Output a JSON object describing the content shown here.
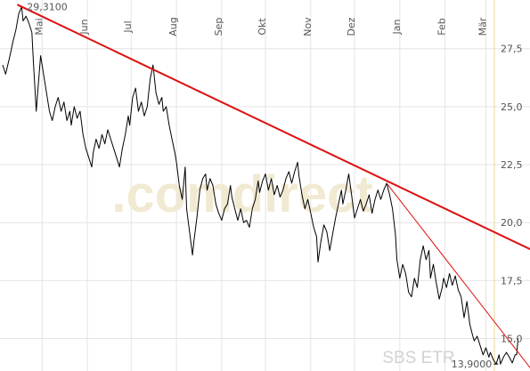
{
  "chart_data": {
    "type": "line",
    "title": "",
    "xlabel": "",
    "ylabel": "",
    "instrument": "SBS ETR",
    "watermark": ".comdirect",
    "ylim": [
      13.6,
      29.6
    ],
    "y_ticks": [
      "15,0",
      "17,5",
      "20,0",
      "22,5",
      "25,0",
      "27,5"
    ],
    "y_tick_values": [
      15.0,
      17.5,
      20.0,
      22.5,
      25.0,
      27.5
    ],
    "x_ticks": [
      "Mai",
      "Jun",
      "Jul",
      "Aug",
      "Sep",
      "Okt",
      "Nov",
      "Dez",
      "Jan",
      "Feb",
      "Mär"
    ],
    "x_tick_days": [
      27,
      58,
      88,
      119,
      150,
      180,
      211,
      241,
      272,
      303,
      331
    ],
    "x_range_days": [
      0,
      363
    ],
    "grid": true,
    "annotations": {
      "high_label": "29,3100",
      "high_value": 29.31,
      "high_day": 13,
      "low_label": "13,9000",
      "low_value": 13.9,
      "low_day": 340
    },
    "trendlines": [
      {
        "name": "",
        "points": [
          [
            10,
            29.4
          ],
          [
            363,
            18.8
          ]
        ],
        "color": "#dd1111",
        "width": 2
      },
      {
        "name": "",
        "points": [
          [
            263,
            21.7
          ],
          [
            363,
            13.6
          ]
        ],
        "color": "#dd1111",
        "width": 1
      }
    ],
    "series": [
      {
        "name": "",
        "color": "#000000",
        "points": [
          [
            0,
            26.8
          ],
          [
            2,
            26.4
          ],
          [
            5,
            27.2
          ],
          [
            7,
            27.8
          ],
          [
            9,
            28.3
          ],
          [
            11,
            29.0
          ],
          [
            13,
            29.31
          ],
          [
            14,
            28.7
          ],
          [
            16,
            28.9
          ],
          [
            18,
            28.6
          ],
          [
            20,
            28.2
          ],
          [
            21,
            27.0
          ],
          [
            23,
            24.8
          ],
          [
            24,
            25.6
          ],
          [
            26,
            27.2
          ],
          [
            28,
            26.4
          ],
          [
            30,
            25.6
          ],
          [
            32,
            24.8
          ],
          [
            34,
            24.4
          ],
          [
            36,
            25.0
          ],
          [
            38,
            25.4
          ],
          [
            40,
            24.8
          ],
          [
            42,
            25.2
          ],
          [
            44,
            24.4
          ],
          [
            46,
            24.8
          ],
          [
            47,
            24.2
          ],
          [
            49,
            25.0
          ],
          [
            51,
            24.5
          ],
          [
            53,
            24.8
          ],
          [
            55,
            23.8
          ],
          [
            57,
            23.2
          ],
          [
            59,
            22.8
          ],
          [
            61,
            22.4
          ],
          [
            62,
            23.0
          ],
          [
            64,
            23.6
          ],
          [
            66,
            23.2
          ],
          [
            68,
            23.8
          ],
          [
            70,
            23.4
          ],
          [
            72,
            24.0
          ],
          [
            74,
            23.6
          ],
          [
            76,
            23.2
          ],
          [
            78,
            22.8
          ],
          [
            80,
            22.4
          ],
          [
            82,
            23.2
          ],
          [
            84,
            23.8
          ],
          [
            86,
            24.6
          ],
          [
            87,
            24.2
          ],
          [
            89,
            25.4
          ],
          [
            91,
            25.8
          ],
          [
            93,
            24.8
          ],
          [
            95,
            25.2
          ],
          [
            97,
            24.6
          ],
          [
            99,
            25.0
          ],
          [
            101,
            26.2
          ],
          [
            103,
            26.8
          ],
          [
            105,
            25.6
          ],
          [
            107,
            25.1
          ],
          [
            109,
            25.4
          ],
          [
            110,
            24.8
          ],
          [
            112,
            25.0
          ],
          [
            114,
            24.2
          ],
          [
            116,
            23.6
          ],
          [
            118,
            23.0
          ],
          [
            119,
            22.6
          ],
          [
            121,
            21.6
          ],
          [
            123,
            21.0
          ],
          [
            125,
            22.4
          ],
          [
            126,
            20.6
          ],
          [
            128,
            19.6
          ],
          [
            130,
            18.6
          ],
          [
            131,
            19.2
          ],
          [
            133,
            20.2
          ],
          [
            135,
            21.4
          ],
          [
            137,
            21.9
          ],
          [
            139,
            22.1
          ],
          [
            140,
            21.4
          ],
          [
            142,
            21.9
          ],
          [
            144,
            21.6
          ],
          [
            146,
            20.8
          ],
          [
            148,
            20.4
          ],
          [
            150,
            20.1
          ],
          [
            152,
            20.6
          ],
          [
            154,
            20.8
          ],
          [
            156,
            21.6
          ],
          [
            157,
            21.1
          ],
          [
            159,
            20.6
          ],
          [
            161,
            20.1
          ],
          [
            163,
            20.6
          ],
          [
            165,
            20.0
          ],
          [
            167,
            20.1
          ],
          [
            169,
            19.8
          ],
          [
            171,
            20.6
          ],
          [
            173,
            21.0
          ],
          [
            175,
            21.8
          ],
          [
            176,
            21.3
          ],
          [
            178,
            21.8
          ],
          [
            180,
            22.1
          ],
          [
            182,
            21.4
          ],
          [
            184,
            21.9
          ],
          [
            186,
            21.2
          ],
          [
            188,
            21.6
          ],
          [
            190,
            21.1
          ],
          [
            192,
            21.4
          ],
          [
            194,
            21.9
          ],
          [
            196,
            22.2
          ],
          [
            198,
            21.7
          ],
          [
            200,
            22.2
          ],
          [
            202,
            22.6
          ],
          [
            203,
            22.0
          ],
          [
            205,
            21.2
          ],
          [
            207,
            20.6
          ],
          [
            209,
            21.0
          ],
          [
            211,
            20.4
          ],
          [
            213,
            19.8
          ],
          [
            215,
            19.4
          ],
          [
            216,
            18.3
          ],
          [
            218,
            19.2
          ],
          [
            220,
            19.9
          ],
          [
            222,
            19.6
          ],
          [
            224,
            18.8
          ],
          [
            226,
            19.5
          ],
          [
            228,
            20.2
          ],
          [
            230,
            20.8
          ],
          [
            232,
            21.4
          ],
          [
            233,
            20.8
          ],
          [
            235,
            21.4
          ],
          [
            237,
            22.1
          ],
          [
            239,
            21.2
          ],
          [
            241,
            20.2
          ],
          [
            243,
            20.6
          ],
          [
            245,
            21.0
          ],
          [
            247,
            20.5
          ],
          [
            249,
            20.8
          ],
          [
            251,
            21.2
          ],
          [
            253,
            20.4
          ],
          [
            255,
            21.0
          ],
          [
            257,
            21.4
          ],
          [
            259,
            21.0
          ],
          [
            261,
            21.4
          ],
          [
            263,
            21.7
          ],
          [
            265,
            21.2
          ],
          [
            267,
            20.6
          ],
          [
            269,
            19.5
          ],
          [
            270,
            18.4
          ],
          [
            272,
            17.6
          ],
          [
            274,
            18.2
          ],
          [
            276,
            17.8
          ],
          [
            278,
            17.0
          ],
          [
            280,
            16.8
          ],
          [
            282,
            17.6
          ],
          [
            284,
            17.2
          ],
          [
            286,
            18.4
          ],
          [
            288,
            19.0
          ],
          [
            290,
            18.4
          ],
          [
            292,
            18.8
          ],
          [
            293,
            17.6
          ],
          [
            295,
            18.2
          ],
          [
            297,
            17.4
          ],
          [
            299,
            16.7
          ],
          [
            301,
            17.2
          ],
          [
            302,
            17.6
          ],
          [
            304,
            17.2
          ],
          [
            306,
            17.8
          ],
          [
            308,
            17.3
          ],
          [
            310,
            17.7
          ],
          [
            312,
            17.1
          ],
          [
            314,
            16.8
          ],
          [
            316,
            15.9
          ],
          [
            318,
            16.6
          ],
          [
            320,
            15.6
          ],
          [
            322,
            15.1
          ],
          [
            323,
            14.9
          ],
          [
            325,
            15.1
          ],
          [
            327,
            14.7
          ],
          [
            329,
            14.3
          ],
          [
            331,
            14.6
          ],
          [
            333,
            14.2
          ],
          [
            334,
            14.4
          ],
          [
            336,
            14.1
          ],
          [
            338,
            13.9
          ],
          [
            340,
            14.3
          ],
          [
            341,
            13.9
          ],
          [
            343,
            14.2
          ],
          [
            345,
            14.4
          ],
          [
            347,
            14.2
          ],
          [
            349,
            13.95
          ],
          [
            351,
            14.3
          ],
          [
            352,
            14.3
          ],
          [
            353,
            15.0
          ]
        ]
      }
    ]
  }
}
